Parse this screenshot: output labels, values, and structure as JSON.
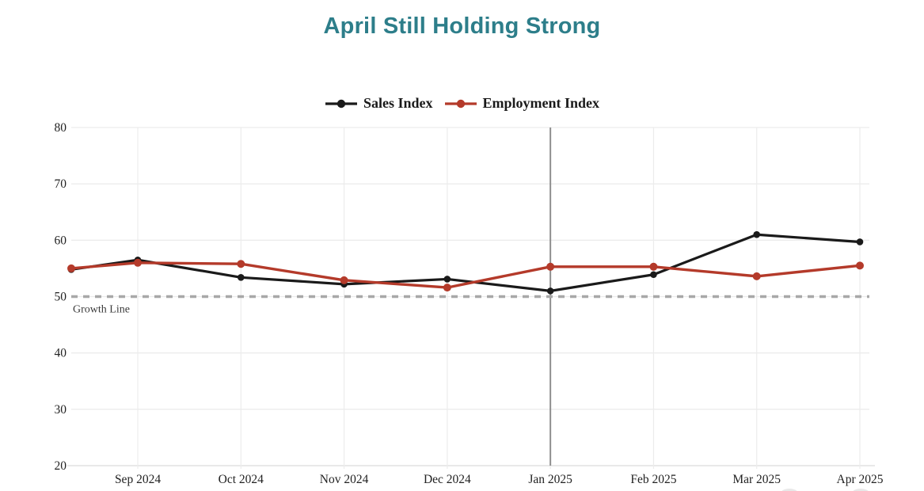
{
  "title": {
    "text": "April Still Holding Strong",
    "color": "#2d7e8a"
  },
  "legend": {
    "items": [
      {
        "label": "Sales Index",
        "color": "#1a1a1a"
      },
      {
        "label": "Employment Index",
        "color": "#b43a2a"
      }
    ]
  },
  "chart_data": {
    "type": "line",
    "title": "April Still Holding Strong",
    "categories": [
      "Sep 2024",
      "Oct 2024",
      "Nov 2024",
      "Dec 2024",
      "Jan 2025",
      "Feb 2025",
      "Mar 2025",
      "Apr 2025"
    ],
    "series": [
      {
        "name": "Sales Index",
        "color": "#1a1a1a",
        "edge_start": 54.8,
        "values": [
          56.5,
          53.4,
          52.2,
          53.1,
          51.0,
          53.9,
          61.0,
          59.7
        ]
      },
      {
        "name": "Employment Index",
        "color": "#b43a2a",
        "edge_start": 55.0,
        "values": [
          56.0,
          55.8,
          52.9,
          51.6,
          55.3,
          55.3,
          53.6,
          55.5
        ]
      }
    ],
    "xlabel": "",
    "ylabel": "",
    "ylim": [
      20,
      80
    ],
    "yticks": [
      20,
      30,
      40,
      50,
      60,
      70,
      80
    ],
    "grid": true,
    "legend_position": "top-center",
    "reference_line": {
      "value": 50,
      "label": "Growth Line",
      "style": "dashed",
      "color": "#a8a8a8"
    },
    "vertical_marker": {
      "category": "Jan 2025",
      "color": "#8f8f8f"
    },
    "x_start_clipped": true
  }
}
